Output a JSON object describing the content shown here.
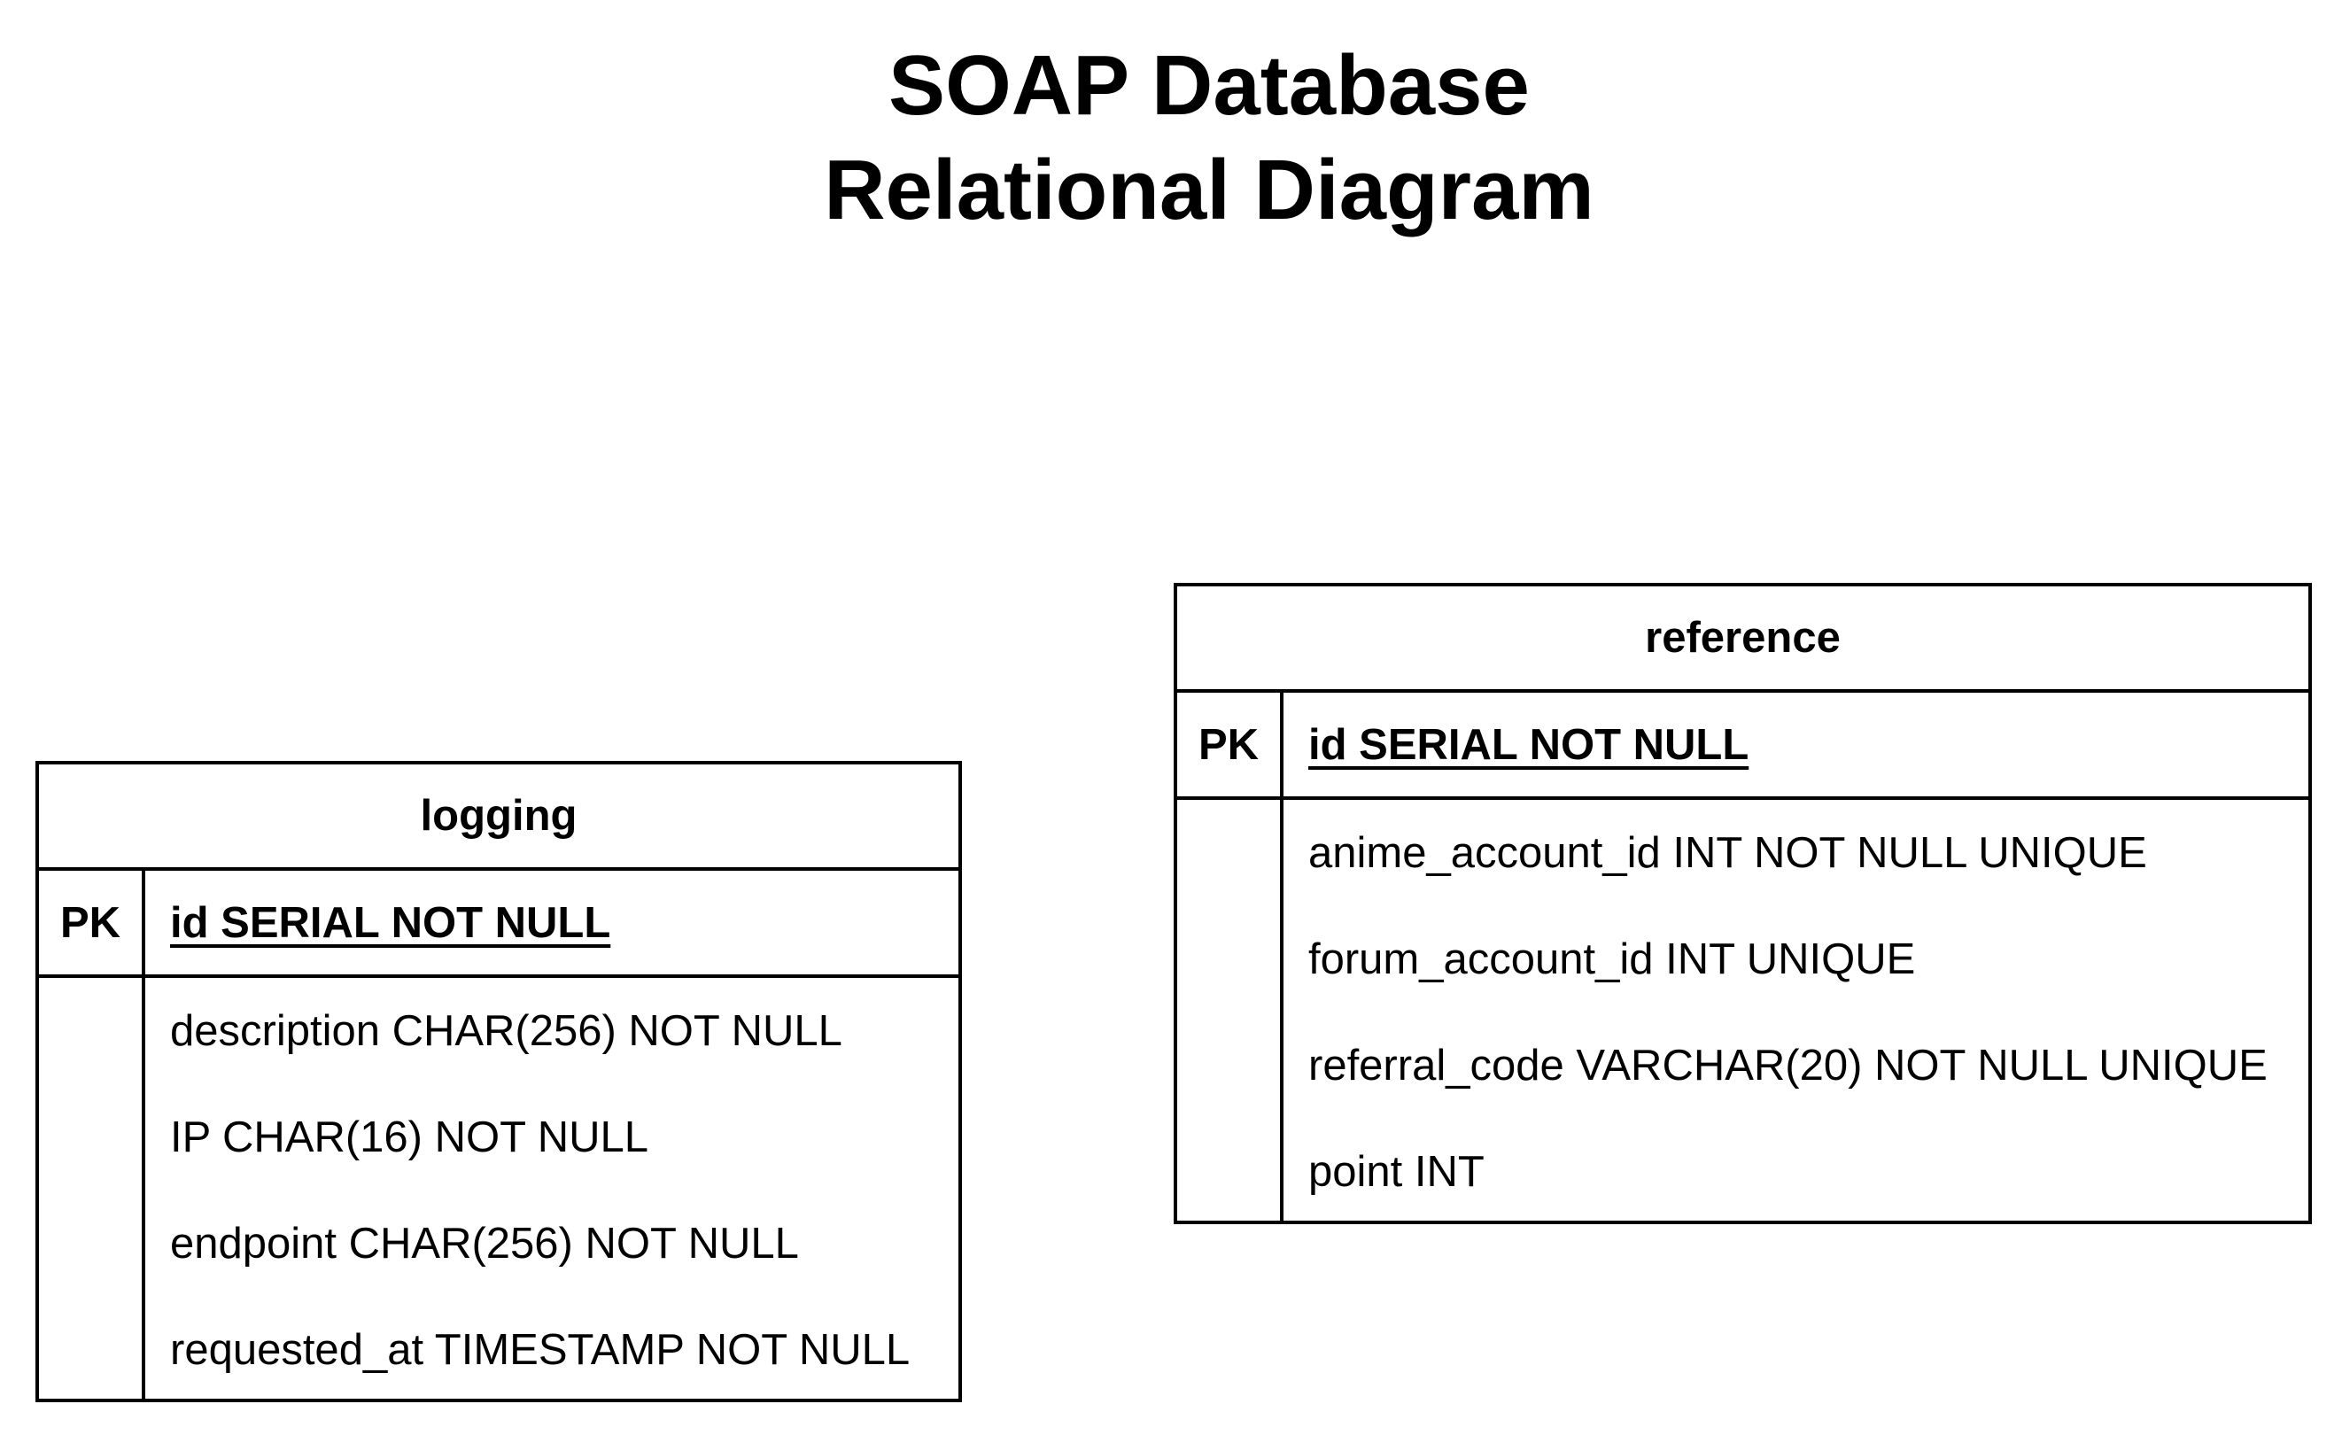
{
  "title": {
    "line1": "SOAP Database",
    "line2": "Relational Diagram"
  },
  "entities": [
    {
      "name": "logging",
      "pk_label": "PK",
      "pk_field": "id SERIAL NOT NULL",
      "attributes": [
        "description CHAR(256) NOT NULL",
        "IP CHAR(16) NOT NULL",
        "endpoint CHAR(256) NOT NULL",
        "requested_at TIMESTAMP NOT NULL"
      ]
    },
    {
      "name": "reference",
      "pk_label": "PK",
      "pk_field": "id SERIAL NOT NULL",
      "attributes": [
        "anime_account_id INT NOT NULL UNIQUE",
        "forum_account_id INT UNIQUE",
        "referral_code VARCHAR(20) NOT NULL UNIQUE",
        "point INT"
      ]
    }
  ]
}
